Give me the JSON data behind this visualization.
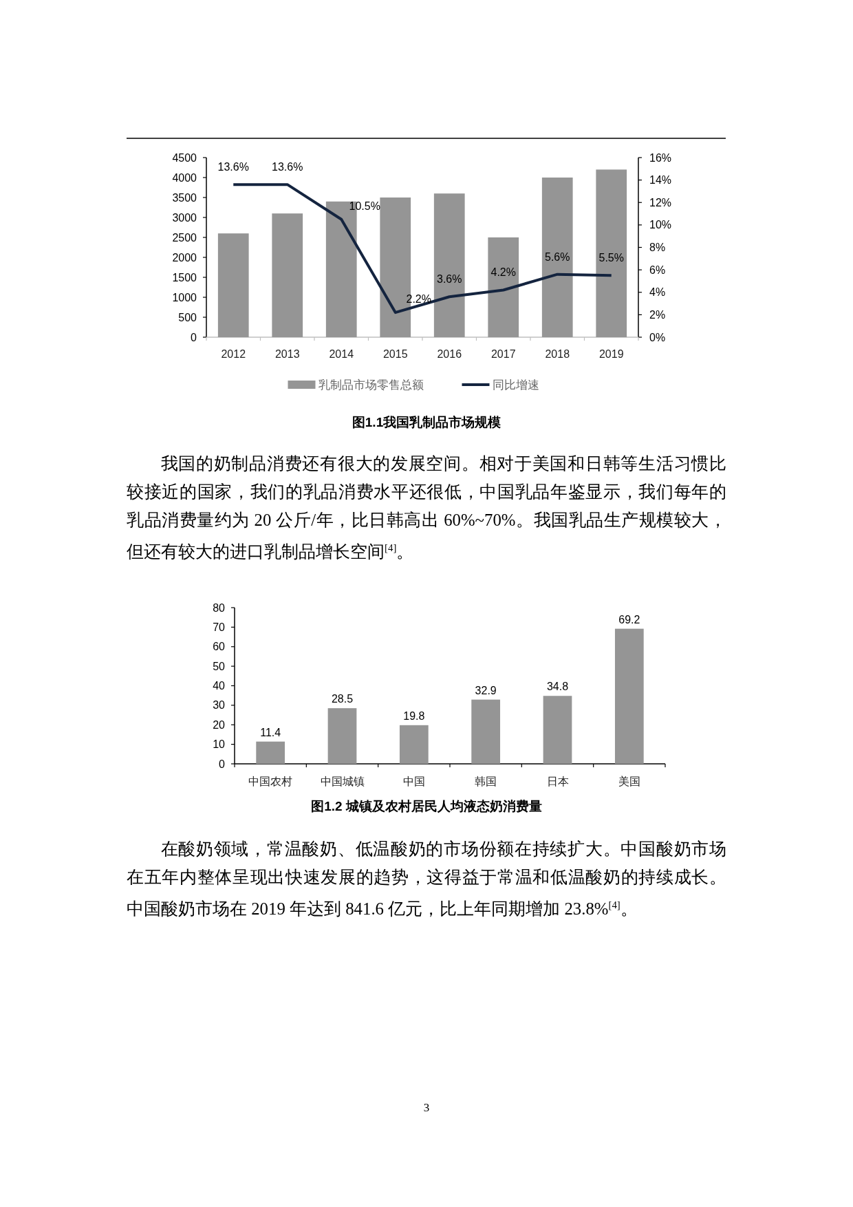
{
  "chart_data": [
    {
      "type": "bar",
      "title": "图1.1我国乳制品市场规模",
      "categories": [
        "2012",
        "2013",
        "2014",
        "2015",
        "2016",
        "2017",
        "2018",
        "2019"
      ],
      "series": [
        {
          "name": "乳制品市场零售总额",
          "type": "bar",
          "color": "#959595",
          "values": [
            2600,
            3100,
            3400,
            3500,
            3600,
            2500,
            4000,
            4200
          ]
        },
        {
          "name": "同比增速",
          "type": "line",
          "axis": "y2",
          "color": "#14243f",
          "value_labels": [
            "13.6%",
            "13.6%",
            "10.5%",
            "2.2%",
            "3.6%",
            "4.2%",
            "5.6%",
            "5.5%"
          ],
          "values": [
            13.6,
            13.6,
            10.5,
            2.2,
            3.6,
            4.2,
            5.6,
            5.5
          ]
        }
      ],
      "ylim": [
        0,
        4500
      ],
      "yticks": [
        0,
        500,
        1000,
        1500,
        2000,
        2500,
        3000,
        3500,
        4000,
        4500
      ],
      "y2lim": [
        0,
        16
      ],
      "y2ticks": [
        {
          "value": 0,
          "label": "0%"
        },
        {
          "value": 2,
          "label": "2%"
        },
        {
          "value": 4,
          "label": "4%"
        },
        {
          "value": 6,
          "label": "6%"
        },
        {
          "value": 8,
          "label": "8%"
        },
        {
          "value": 10,
          "label": "10%"
        },
        {
          "value": 12,
          "label": "12%"
        },
        {
          "value": 14,
          "label": "14%"
        },
        {
          "value": 16,
          "label": "16%"
        }
      ],
      "legend": "bottom",
      "grid": false,
      "annotations": [
        "我国的奶制品消费还有很大的发展空间。相对于美国和日韩等生活习惯比较接近的国家，我们的乳品消费水平还很低，中国乳品年鉴显示，我们每年的乳品消费量约为 20 公斤/年，比日韩高出 60%~70%。我国乳品生产规模较大，但还有较大的进口乳制品增长空间$^{[4]}$。"
      ]
    },
    {
      "type": "bar",
      "title": "图1.2  城镇及农村居民人均液态奶消费量",
      "categories": [
        "中国农村",
        "中国城镇",
        "中国",
        "韩国",
        "日本",
        "美国"
      ],
      "values": [
        11.4,
        28.5,
        19.8,
        32.9,
        34.8,
        69.2
      ],
      "color": "#959595",
      "data_labels": true,
      "ylim": [
        0,
        80
      ],
      "yticks": [
        0,
        10,
        20,
        30,
        40,
        50,
        60,
        70,
        80
      ],
      "grid": false,
      "legend": false,
      "annotations": [
        "在酸奶领域，常温酸奶、低温酸奶的市场份额在持续扩大。中国酸奶市场在五年内整体呈现出快速发展的趋势，这得益于常温和低温酸奶的持续成长。中国酸奶市场在 2019 年达到 841.6 亿元，比上年同期增加 23.8%$^{[4]}$。",
        "3"
      ]
    }
  ]
}
